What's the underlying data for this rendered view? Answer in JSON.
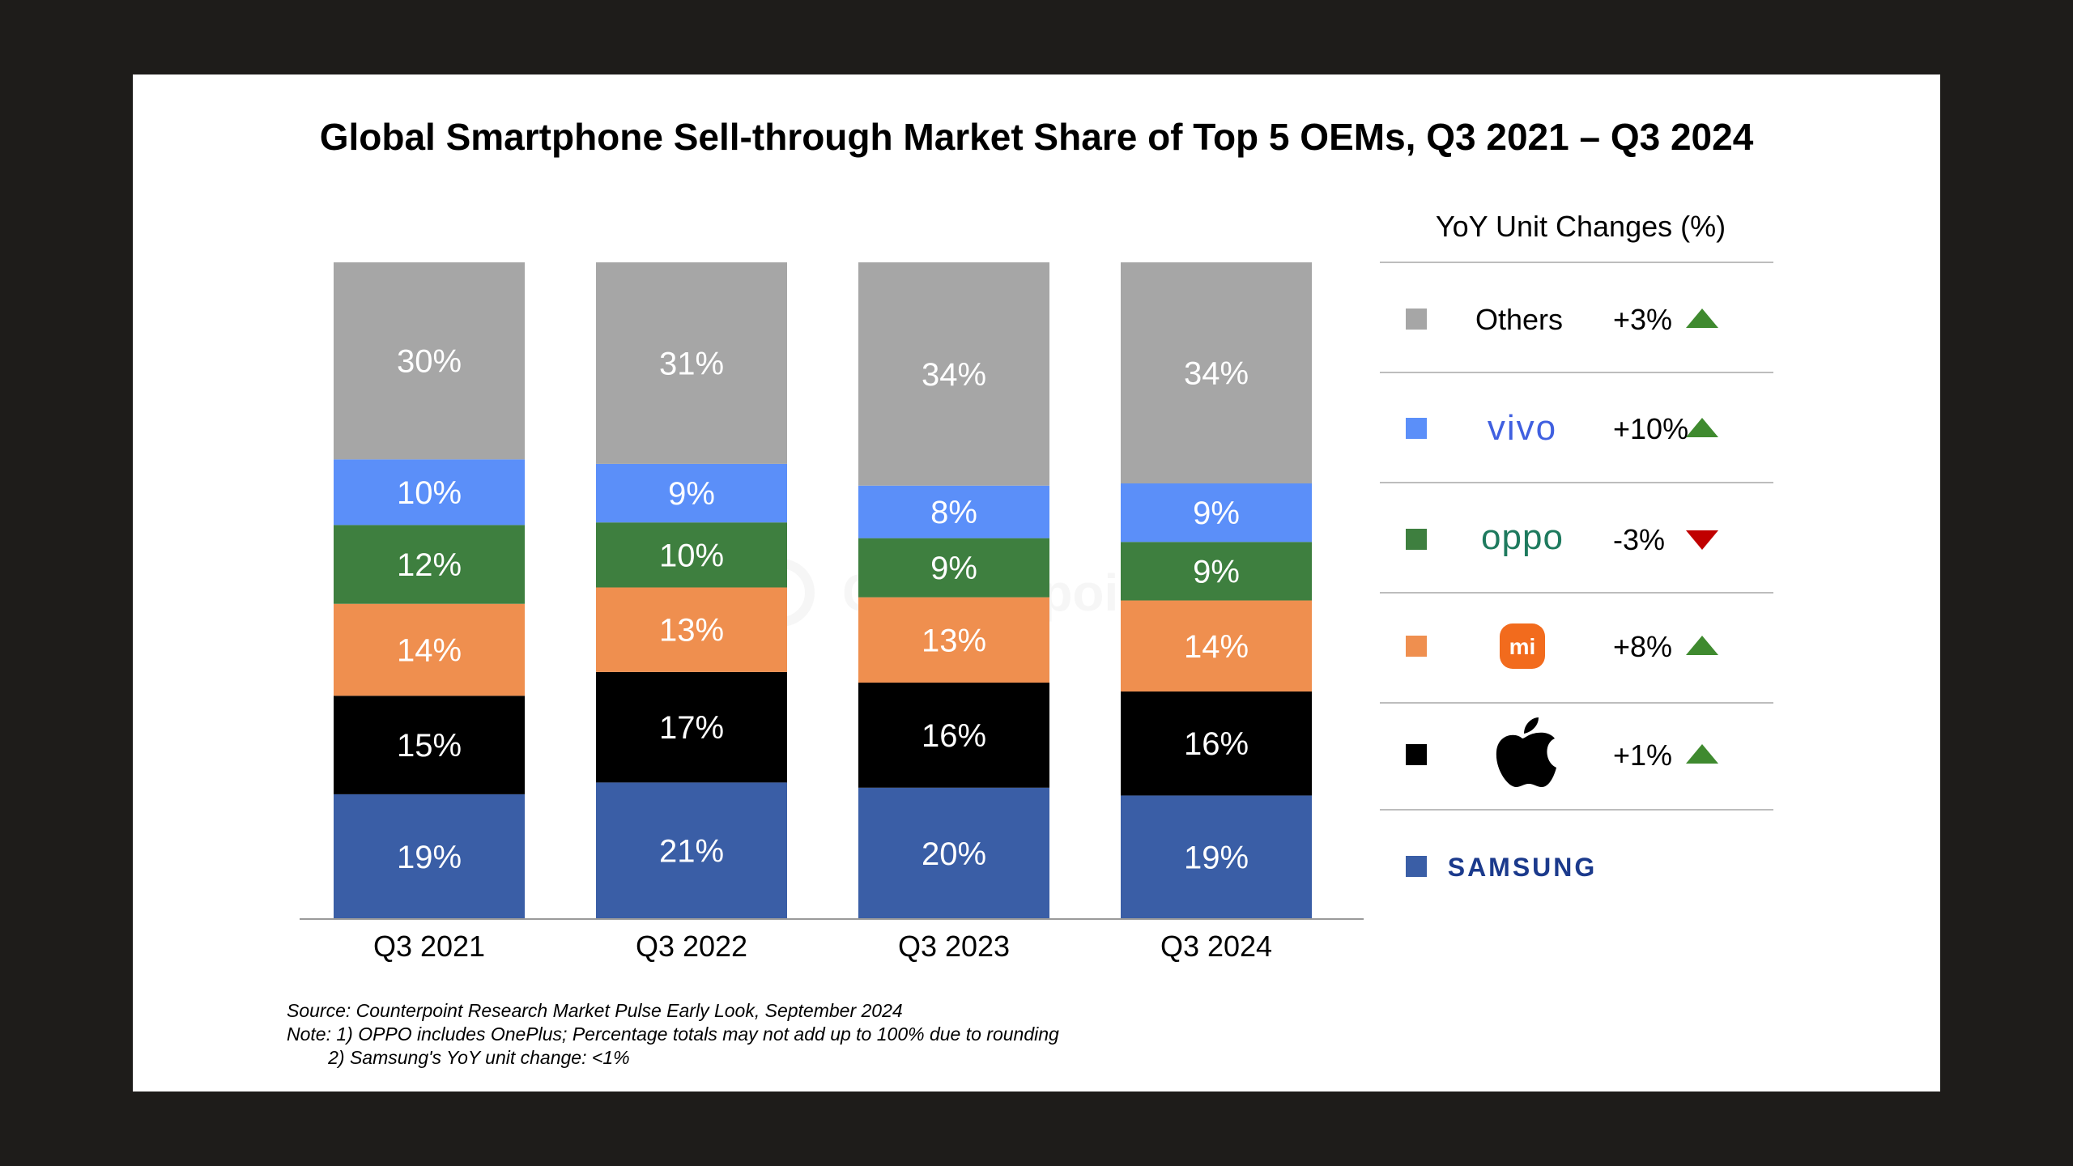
{
  "chart_data": {
    "type": "bar",
    "stacked": true,
    "title": "Global Smartphone Sell-through Market Share of Top 5 OEMs, Q3 2021 – Q3 2024",
    "categories": [
      "Q3 2021",
      "Q3 2022",
      "Q3 2023",
      "Q3 2024"
    ],
    "series": [
      {
        "name": "Samsung",
        "color": "#3a5ea6",
        "values": [
          19,
          21,
          20,
          19
        ],
        "labels": [
          "19%",
          "21%",
          "20%",
          "19%"
        ]
      },
      {
        "name": "Apple",
        "color": "#000000",
        "values": [
          15,
          17,
          16,
          16
        ],
        "labels": [
          "15%",
          "17%",
          "16%",
          "16%"
        ]
      },
      {
        "name": "Xiaomi",
        "color": "#ef8f4f",
        "values": [
          14,
          13,
          13,
          14
        ],
        "labels": [
          "14%",
          "13%",
          "13%",
          "14%"
        ]
      },
      {
        "name": "OPPO",
        "color": "#3e7f3f",
        "values": [
          12,
          10,
          9,
          9
        ],
        "labels": [
          "12%",
          "10%",
          "9%",
          "9%"
        ]
      },
      {
        "name": "vivo",
        "color": "#5b8ff9",
        "values": [
          10,
          9,
          8,
          9
        ],
        "labels": [
          "10%",
          "9%",
          "8%",
          "9%"
        ]
      },
      {
        "name": "Others",
        "color": "#a6a6a6",
        "values": [
          30,
          31,
          34,
          34
        ],
        "labels": [
          "30%",
          "31%",
          "34%",
          "34%"
        ]
      }
    ],
    "xlabel": "",
    "ylabel": "",
    "ylim": [
      0,
      100
    ],
    "grid": false,
    "legend": {
      "position": "right",
      "header": "YoY Unit Changes (%)",
      "entries": [
        {
          "name": "Others",
          "label": "Others",
          "logo": "text",
          "color": "#a6a6a6",
          "change": "+3%",
          "trend": "up"
        },
        {
          "name": "vivo",
          "label": "vivo",
          "logo": "vivo-logo",
          "color": "#5b8ff9",
          "change": "+10%",
          "trend": "up"
        },
        {
          "name": "OPPO",
          "label": "oppo",
          "logo": "oppo-logo",
          "color": "#3e7f3f",
          "change": "-3%",
          "trend": "down"
        },
        {
          "name": "Xiaomi",
          "label": "mi",
          "logo": "mi-logo",
          "color": "#ef8f4f",
          "change": "+8%",
          "trend": "up"
        },
        {
          "name": "Apple",
          "label": "",
          "logo": "apple-logo-icon",
          "color": "#000000",
          "change": "+1%",
          "trend": "up"
        },
        {
          "name": "Samsung",
          "label": "SAMSUNG",
          "logo": "samsung-logo",
          "color": "#3a5ea6",
          "change": "",
          "trend": "none"
        }
      ]
    },
    "watermark": "Counterpoint"
  },
  "colors": {
    "trend_up": "#3f8a2f",
    "trend_down": "#c00000",
    "axis": "#9a9a9a",
    "divider": "#bdbdbd"
  },
  "footnotes": {
    "source": "Source: Counterpoint Research Market Pulse Early Look, September 2024",
    "note1": "Note: 1) OPPO includes OnePlus; Percentage totals may not add up to 100% due to rounding",
    "note2": "        2) Samsung's YoY unit change: <1%"
  }
}
